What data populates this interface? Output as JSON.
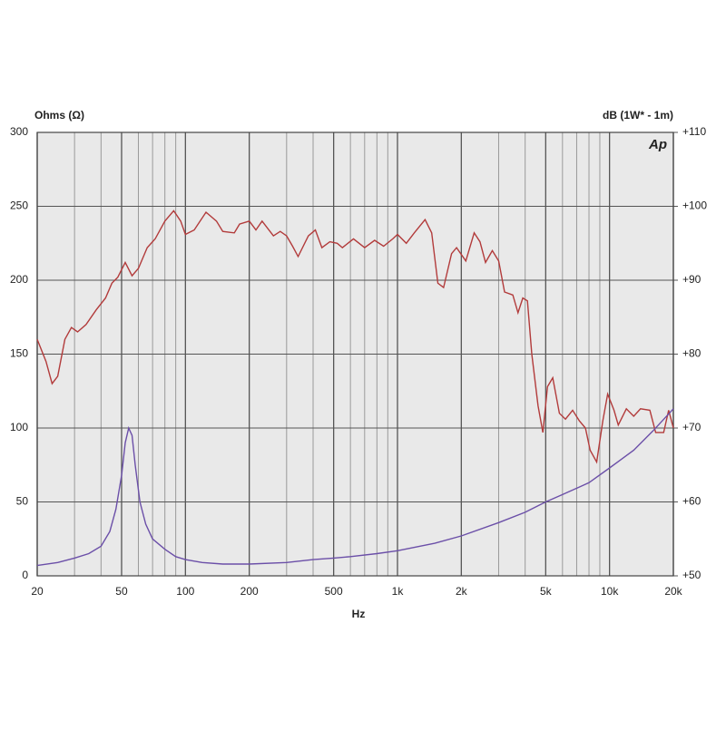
{
  "chart_data": {
    "type": "line",
    "ylabel": "Ohms (Ω)",
    "y2label": "dB (1W* - 1m)",
    "xlabel": "Hz",
    "logo": "Ap",
    "xscale": "log",
    "grid": true,
    "xlim": [
      20,
      20000
    ],
    "xticks": [
      20,
      50,
      100,
      200,
      500,
      {
        "value": 1000,
        "label": "1k"
      },
      {
        "value": 2000,
        "label": "2k"
      },
      {
        "value": 5000,
        "label": "5k"
      },
      {
        "value": 10000,
        "label": "10k"
      },
      {
        "value": 20000,
        "label": "20k"
      }
    ],
    "xminor": [
      30,
      40,
      60,
      70,
      80,
      90,
      300,
      400,
      600,
      700,
      800,
      900,
      3000,
      4000,
      6000,
      7000,
      8000,
      9000
    ],
    "ylim": [
      0,
      300
    ],
    "yticks": [
      0,
      50,
      100,
      150,
      200,
      250,
      300
    ],
    "y2lim": [
      50,
      110
    ],
    "y2ticks": [
      {
        "value": 50,
        "label": "+50"
      },
      {
        "value": 60,
        "label": "+60"
      },
      {
        "value": 70,
        "label": "+70"
      },
      {
        "value": 80,
        "label": "+80"
      },
      {
        "value": 90,
        "label": "+90"
      },
      {
        "value": 100,
        "label": "+100"
      },
      {
        "value": 110,
        "label": "+110"
      }
    ],
    "series": [
      {
        "color": "#b23b3b",
        "axis": "y2",
        "x": [
          20,
          22,
          23.5,
          25,
          27,
          29,
          31,
          34,
          38,
          42,
          45,
          48,
          52,
          56,
          60,
          66,
          72,
          80,
          88,
          95,
          100,
          110,
          125,
          140,
          150,
          170,
          180,
          200,
          215,
          230,
          260,
          280,
          300,
          320,
          340,
          380,
          410,
          440,
          480,
          520,
          550,
          620,
          700,
          780,
          860,
          950,
          1000,
          1100,
          1200,
          1350,
          1450,
          1550,
          1650,
          1800,
          1900,
          2100,
          2300,
          2450,
          2600,
          2800,
          3000,
          3200,
          3500,
          3700,
          3900,
          4100,
          4300,
          4600,
          4850,
          5100,
          5400,
          5800,
          6200,
          6700,
          7200,
          7700,
          8100,
          8700,
          9300,
          9800,
          10500,
          11000,
          12000,
          13000,
          14000,
          15500,
          16500,
          18000,
          19000,
          20000
        ],
        "values": [
          82,
          79,
          76,
          77,
          82,
          83.6,
          83,
          84,
          86,
          87.6,
          89.6,
          90.4,
          92.4,
          90.6,
          91.6,
          94.4,
          95.6,
          98,
          99.4,
          98,
          96.2,
          96.8,
          99.2,
          98,
          96.6,
          96.4,
          97.6,
          98,
          96.8,
          98,
          96,
          96.6,
          96,
          94.6,
          93.2,
          96,
          96.8,
          94.4,
          95.2,
          95,
          94.4,
          95.6,
          94.4,
          95.4,
          94.6,
          95.6,
          96.2,
          95,
          96.4,
          98.2,
          96.4,
          89.6,
          89,
          93.6,
          94.4,
          92.6,
          96.4,
          95.2,
          92.4,
          94,
          92.6,
          88.4,
          88,
          85.6,
          87.6,
          87.2,
          80,
          73,
          69.4,
          75.6,
          76.8,
          72,
          71.2,
          72.4,
          71,
          70,
          67,
          65.4,
          71,
          74.6,
          72.4,
          70.4,
          72.6,
          71.6,
          72.6,
          72.4,
          69.4,
          69.4,
          72.4,
          70
        ]
      },
      {
        "color": "#6b4fa8",
        "axis": "y",
        "x": [
          20,
          25,
          30,
          35,
          40,
          44,
          47,
          50,
          52,
          54,
          56,
          58,
          61,
          65,
          70,
          80,
          90,
          100,
          120,
          150,
          200,
          300,
          400,
          500,
          600,
          800,
          1000,
          1500,
          2000,
          3000,
          4000,
          5000,
          6000,
          8000,
          10000,
          13000,
          16000,
          20000
        ],
        "values": [
          7,
          9,
          12,
          15,
          20,
          30,
          45,
          68,
          90,
          100,
          95,
          75,
          50,
          35,
          25,
          18,
          13,
          11,
          9,
          8,
          8,
          9,
          11,
          12,
          13,
          15,
          17,
          22,
          27,
          36,
          43,
          50,
          55,
          63,
          73,
          85,
          98,
          113
        ]
      }
    ]
  }
}
